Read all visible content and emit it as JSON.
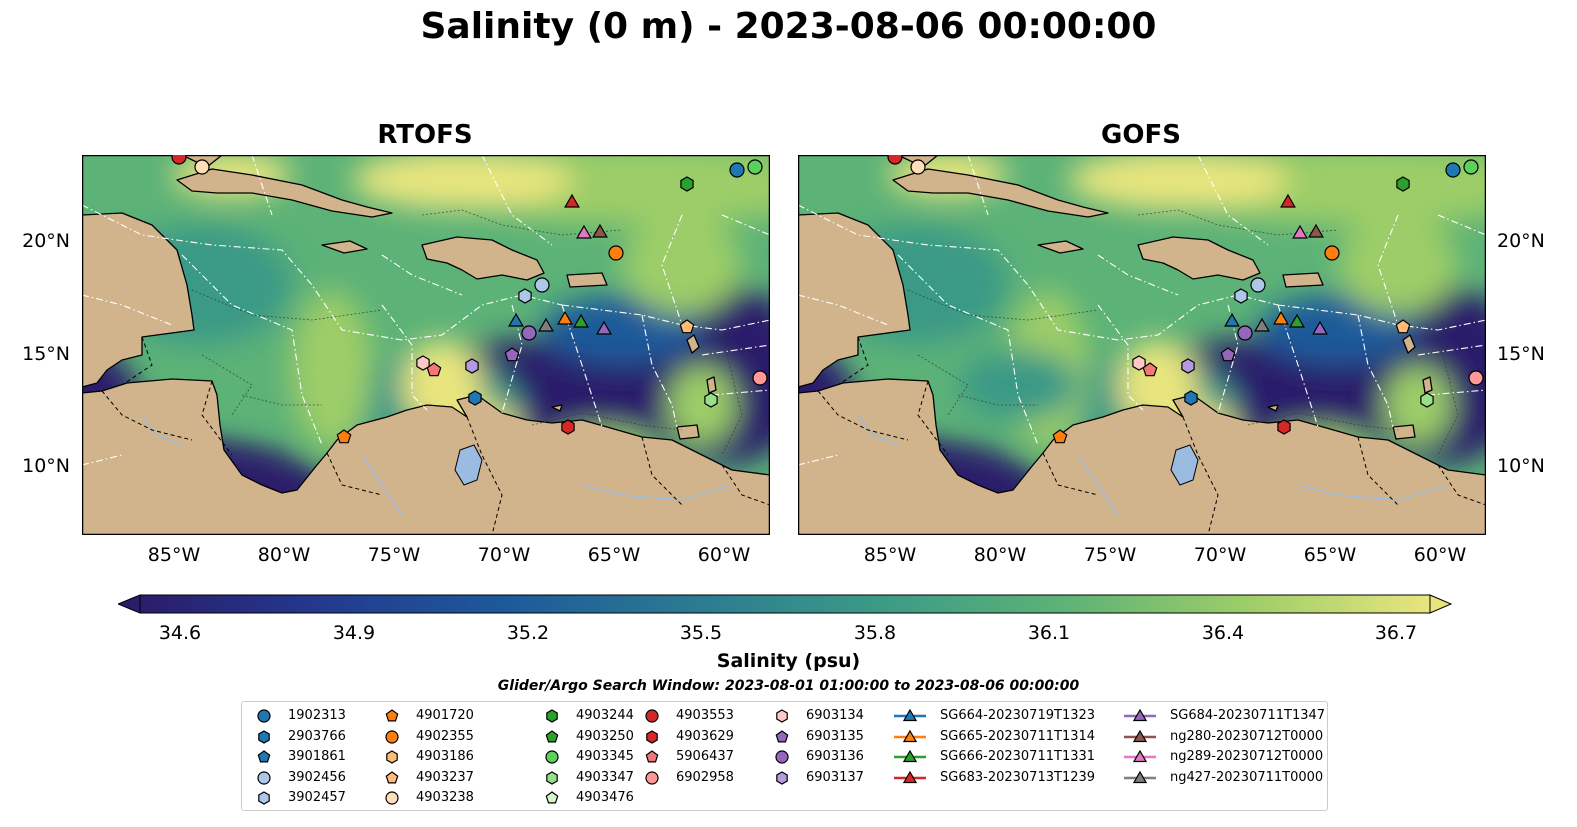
{
  "title": "Salinity (0 m) - 2023-08-06 00:00:00",
  "panels": [
    {
      "title": "RTOFS"
    },
    {
      "title": "GOFS"
    }
  ],
  "axes": {
    "lat_ticks": [
      "20°N",
      "15°N",
      "10°N"
    ],
    "lon_ticks": [
      "85°W",
      "80°W",
      "75°W",
      "70°W",
      "65°W",
      "60°W"
    ]
  },
  "colorbar": {
    "label": "Salinity (psu)",
    "ticks": [
      "34.6",
      "34.9",
      "35.2",
      "35.5",
      "35.8",
      "36.1",
      "36.4",
      "36.7"
    ],
    "range": [
      34.6,
      36.7
    ],
    "colormap": [
      "#2a1d6b",
      "#233a8f",
      "#1d5a9a",
      "#2b7a92",
      "#3b9a86",
      "#5cb277",
      "#9ccd68",
      "#e8e57e"
    ]
  },
  "search_window": "Glider/Argo Search Window: 2023-08-01 01:00:00 to 2023-08-06 00:00:00",
  "legend": {
    "columns": [
      [
        {
          "label": "1902313",
          "marker": "circle",
          "color": "#1f77b4"
        },
        {
          "label": "2903766",
          "marker": "hexagon",
          "color": "#1f77b4"
        },
        {
          "label": "3901861",
          "marker": "pentagon",
          "color": "#1f77b4"
        },
        {
          "label": "3902456",
          "marker": "circle",
          "color": "#aec7e8"
        },
        {
          "label": "3902457",
          "marker": "hexagon",
          "color": "#aec7e8"
        }
      ],
      [
        {
          "label": "4901720",
          "marker": "pentagon",
          "color": "#ff7f0e"
        },
        {
          "label": "4902355",
          "marker": "circle",
          "color": "#ff7f0e"
        },
        {
          "label": "4903186",
          "marker": "hexagon",
          "color": "#ffbb78"
        },
        {
          "label": "4903237",
          "marker": "pentagon",
          "color": "#ffbb78"
        },
        {
          "label": "4903238",
          "marker": "circle",
          "color": "#ffdfb8"
        }
      ],
      [
        {
          "label": "4903244",
          "marker": "hexagon",
          "color": "#2ca02c"
        },
        {
          "label": "4903250",
          "marker": "pentagon",
          "color": "#2ca02c"
        },
        {
          "label": "4903345",
          "marker": "circle",
          "color": "#5bd05b"
        },
        {
          "label": "4903347",
          "marker": "hexagon",
          "color": "#98df8a"
        },
        {
          "label": "4903476",
          "marker": "pentagon",
          "color": "#d6f5c8"
        }
      ],
      [
        {
          "label": "4903553",
          "marker": "circle",
          "color": "#d62728"
        },
        {
          "label": "4903629",
          "marker": "hexagon",
          "color": "#d62728"
        },
        {
          "label": "5906437",
          "marker": "pentagon",
          "color": "#f07878"
        },
        {
          "label": "6902958",
          "marker": "circle",
          "color": "#ff9896"
        }
      ],
      [
        {
          "label": "6903134",
          "marker": "hexagon",
          "color": "#ffc8c8"
        },
        {
          "label": "6903135",
          "marker": "pentagon",
          "color": "#9467bd"
        },
        {
          "label": "6903136",
          "marker": "circle",
          "color": "#9467bd"
        },
        {
          "label": "6903137",
          "marker": "hexagon",
          "color": "#b49ae0"
        }
      ],
      [
        {
          "label": "SG664-20230719T1323",
          "marker": "triangle",
          "color": "#1f77b4"
        },
        {
          "label": "SG665-20230711T1314",
          "marker": "triangle",
          "color": "#ff7f0e"
        },
        {
          "label": "SG666-20230711T1331",
          "marker": "triangle",
          "color": "#2ca02c"
        },
        {
          "label": "SG683-20230713T1239",
          "marker": "triangle",
          "color": "#d62728"
        }
      ],
      [
        {
          "label": "SG684-20230711T1347",
          "marker": "triangle",
          "color": "#9467bd"
        },
        {
          "label": "ng280-20230712T0000",
          "marker": "triangle",
          "color": "#8c564b"
        },
        {
          "label": "ng289-20230712T0000",
          "marker": "triangle",
          "color": "#e377c2"
        },
        {
          "label": "ng427-20230711T0000",
          "marker": "triangle",
          "color": "#7f7f7f"
        }
      ]
    ]
  },
  "colors": {
    "land": "#d2b48c",
    "lake": "#9bbbe0",
    "coast": "#000000",
    "eez": "#ffffff"
  }
}
